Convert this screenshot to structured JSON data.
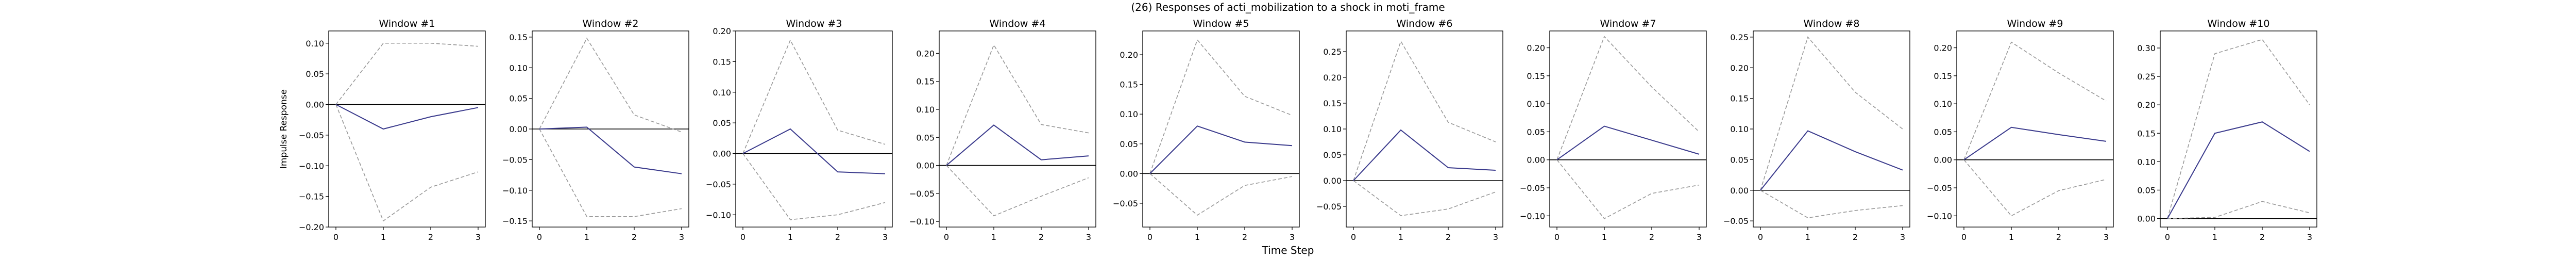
{
  "suptitle": "(26) Responses of acti_mobilization to a shock in moti_frame",
  "ylabel": "Impulse Response",
  "xlabel": "Time Step",
  "colors": {
    "response": "#3a3a8c",
    "band": "#999999",
    "zero": "#000000",
    "axis": "#000000"
  },
  "chart_data": [
    {
      "type": "line",
      "title": "Window #1",
      "x": [
        0,
        1,
        2,
        3
      ],
      "series": [
        {
          "role": "response",
          "values": [
            0,
            -0.04,
            -0.02,
            -0.005
          ]
        },
        {
          "role": "upper",
          "values": [
            0,
            0.1,
            0.1,
            0.095
          ]
        },
        {
          "role": "lower",
          "values": [
            0,
            -0.19,
            -0.135,
            -0.11
          ]
        }
      ],
      "ylim": [
        -0.2,
        0.12
      ],
      "yticks": [
        -0.2,
        -0.15,
        -0.1,
        -0.05,
        0.0,
        0.05,
        0.1
      ],
      "ytick_labels": [
        "−0.20",
        "−0.15",
        "−0.10",
        "−0.05",
        "0.00",
        "0.05",
        "0.10"
      ],
      "xticks": [
        0,
        1,
        2,
        3
      ]
    },
    {
      "type": "line",
      "title": "Window #2",
      "x": [
        0,
        1,
        2,
        3
      ],
      "series": [
        {
          "role": "response",
          "values": [
            0,
            0.003,
            -0.062,
            -0.073
          ]
        },
        {
          "role": "upper",
          "values": [
            0,
            0.148,
            0.023,
            -0.005
          ]
        },
        {
          "role": "lower",
          "values": [
            0,
            -0.143,
            -0.143,
            -0.13
          ]
        }
      ],
      "ylim": [
        -0.16,
        0.16
      ],
      "yticks": [
        -0.15,
        -0.1,
        -0.05,
        0.0,
        0.05,
        0.1,
        0.15
      ],
      "ytick_labels": [
        "−0.15",
        "−0.10",
        "−0.05",
        "0.00",
        "0.05",
        "0.10",
        "0.15"
      ],
      "xticks": [
        0,
        1,
        2,
        3
      ]
    },
    {
      "type": "line",
      "title": "Window #3",
      "x": [
        0,
        1,
        2,
        3
      ],
      "series": [
        {
          "role": "response",
          "values": [
            0,
            0.04,
            -0.03,
            -0.033
          ]
        },
        {
          "role": "upper",
          "values": [
            0,
            0.185,
            0.038,
            0.015
          ]
        },
        {
          "role": "lower",
          "values": [
            0,
            -0.108,
            -0.1,
            -0.08
          ]
        }
      ],
      "ylim": [
        -0.12,
        0.2
      ],
      "yticks": [
        -0.1,
        -0.05,
        0.0,
        0.05,
        0.1,
        0.15,
        0.2
      ],
      "ytick_labels": [
        "−0.10",
        "−0.05",
        "0.00",
        "0.05",
        "0.10",
        "0.15",
        "0.20"
      ],
      "xticks": [
        0,
        1,
        2,
        3
      ]
    },
    {
      "type": "line",
      "title": "Window #4",
      "x": [
        0,
        1,
        2,
        3
      ],
      "series": [
        {
          "role": "response",
          "values": [
            0,
            0.072,
            0.01,
            0.017
          ]
        },
        {
          "role": "upper",
          "values": [
            0,
            0.215,
            0.073,
            0.058
          ]
        },
        {
          "role": "lower",
          "values": [
            0,
            -0.09,
            -0.055,
            -0.022
          ]
        }
      ],
      "ylim": [
        -0.11,
        0.24
      ],
      "yticks": [
        -0.1,
        -0.05,
        0.0,
        0.05,
        0.1,
        0.15,
        0.2
      ],
      "ytick_labels": [
        "−0.10",
        "−0.05",
        "0.00",
        "0.05",
        "0.10",
        "0.15",
        "0.20"
      ],
      "xticks": [
        0,
        1,
        2,
        3
      ]
    },
    {
      "type": "line",
      "title": "Window #5",
      "x": [
        0,
        1,
        2,
        3
      ],
      "series": [
        {
          "role": "response",
          "values": [
            0,
            0.08,
            0.053,
            0.047
          ]
        },
        {
          "role": "upper",
          "values": [
            0,
            0.225,
            0.13,
            0.098
          ]
        },
        {
          "role": "lower",
          "values": [
            0,
            -0.07,
            -0.02,
            -0.005
          ]
        }
      ],
      "ylim": [
        -0.09,
        0.24
      ],
      "yticks": [
        -0.05,
        0.0,
        0.05,
        0.1,
        0.15,
        0.2
      ],
      "ytick_labels": [
        "−0.05",
        "0.00",
        "0.05",
        "0.10",
        "0.15",
        "0.20"
      ],
      "xticks": [
        0,
        1,
        2,
        3
      ]
    },
    {
      "type": "line",
      "title": "Window #6",
      "x": [
        0,
        1,
        2,
        3
      ],
      "series": [
        {
          "role": "response",
          "values": [
            0,
            0.098,
            0.025,
            0.02
          ]
        },
        {
          "role": "upper",
          "values": [
            0,
            0.27,
            0.113,
            0.075
          ]
        },
        {
          "role": "lower",
          "values": [
            0,
            -0.068,
            -0.055,
            -0.022
          ]
        }
      ],
      "ylim": [
        -0.09,
        0.29
      ],
      "yticks": [
        -0.05,
        0.0,
        0.05,
        0.1,
        0.15,
        0.2,
        0.25
      ],
      "ytick_labels": [
        "−0.05",
        "0.00",
        "0.05",
        "0.10",
        "0.15",
        "0.20",
        "0.25"
      ],
      "xticks": [
        0,
        1,
        2,
        3
      ]
    },
    {
      "type": "line",
      "title": "Window #7",
      "x": [
        0,
        1,
        2,
        3
      ],
      "series": [
        {
          "role": "response",
          "values": [
            0,
            0.06,
            0.035,
            0.01
          ]
        },
        {
          "role": "upper",
          "values": [
            0,
            0.22,
            0.13,
            0.05
          ]
        },
        {
          "role": "lower",
          "values": [
            0,
            -0.105,
            -0.06,
            -0.045
          ]
        }
      ],
      "ylim": [
        -0.12,
        0.23
      ],
      "yticks": [
        -0.1,
        -0.05,
        0.0,
        0.05,
        0.1,
        0.15,
        0.2
      ],
      "ytick_labels": [
        "−0.10",
        "−0.05",
        "0.00",
        "0.05",
        "0.10",
        "0.15",
        "0.20"
      ],
      "xticks": [
        0,
        1,
        2,
        3
      ]
    },
    {
      "type": "line",
      "title": "Window #8",
      "x": [
        0,
        1,
        2,
        3
      ],
      "series": [
        {
          "role": "response",
          "values": [
            0,
            0.097,
            0.063,
            0.033
          ]
        },
        {
          "role": "upper",
          "values": [
            0,
            0.25,
            0.16,
            0.1
          ]
        },
        {
          "role": "lower",
          "values": [
            0,
            -0.045,
            -0.033,
            -0.025
          ]
        }
      ],
      "ylim": [
        -0.06,
        0.26
      ],
      "yticks": [
        -0.05,
        0.0,
        0.05,
        0.1,
        0.15,
        0.2,
        0.25
      ],
      "ytick_labels": [
        "−0.05",
        "0.00",
        "0.05",
        "0.10",
        "0.15",
        "0.20",
        "0.25"
      ],
      "xticks": [
        0,
        1,
        2,
        3
      ]
    },
    {
      "type": "line",
      "title": "Window #9",
      "x": [
        0,
        1,
        2,
        3
      ],
      "series": [
        {
          "role": "response",
          "values": [
            0,
            0.058,
            0.045,
            0.033
          ]
        },
        {
          "role": "upper",
          "values": [
            0,
            0.21,
            0.155,
            0.105
          ]
        },
        {
          "role": "lower",
          "values": [
            0,
            -0.1,
            -0.055,
            -0.035
          ]
        }
      ],
      "ylim": [
        -0.12,
        0.23
      ],
      "yticks": [
        -0.1,
        -0.05,
        0.0,
        0.05,
        0.1,
        0.15,
        0.2
      ],
      "ytick_labels": [
        "−0.10",
        "−0.05",
        "0.00",
        "0.05",
        "0.10",
        "0.15",
        "0.20"
      ],
      "xticks": [
        0,
        1,
        2,
        3
      ]
    },
    {
      "type": "line",
      "title": "Window #10",
      "x": [
        0,
        1,
        2,
        3
      ],
      "series": [
        {
          "role": "response",
          "values": [
            0,
            0.15,
            0.17,
            0.118
          ]
        },
        {
          "role": "upper",
          "values": [
            0,
            0.29,
            0.315,
            0.2
          ]
        },
        {
          "role": "lower",
          "values": [
            0,
            0.002,
            0.03,
            0.01
          ]
        }
      ],
      "ylim": [
        -0.015,
        0.33
      ],
      "yticks": [
        0.0,
        0.05,
        0.1,
        0.15,
        0.2,
        0.25,
        0.3
      ],
      "ytick_labels": [
        "0.00",
        "0.05",
        "0.10",
        "0.15",
        "0.20",
        "0.25",
        "0.30"
      ],
      "xticks": [
        0,
        1,
        2,
        3
      ]
    }
  ]
}
